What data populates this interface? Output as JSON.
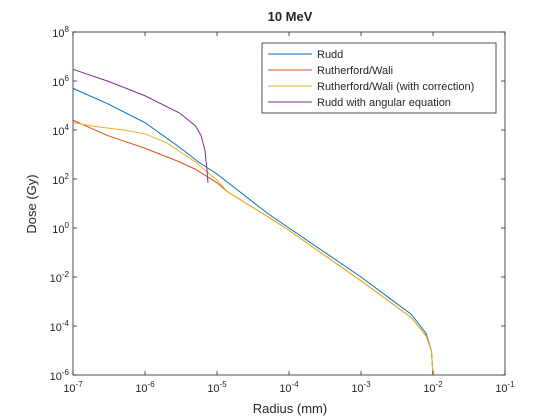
{
  "chart_data": {
    "type": "line",
    "title": "10 MeV",
    "xlabel": "Radius (mm)",
    "ylabel": "Dose (Gy)",
    "xscale": "log",
    "yscale": "log",
    "xlim": [
      1e-07,
      0.1
    ],
    "ylim": [
      1e-06,
      100000000.0
    ],
    "x_ticks": [
      {
        "base": "10",
        "exp": "-7"
      },
      {
        "base": "10",
        "exp": "-6"
      },
      {
        "base": "10",
        "exp": "-5"
      },
      {
        "base": "10",
        "exp": "-4"
      },
      {
        "base": "10",
        "exp": "-3"
      },
      {
        "base": "10",
        "exp": "-2"
      },
      {
        "base": "10",
        "exp": "-1"
      }
    ],
    "y_ticks": [
      {
        "base": "10",
        "exp": "-6"
      },
      {
        "base": "10",
        "exp": "-4"
      },
      {
        "base": "10",
        "exp": "-2"
      },
      {
        "base": "10",
        "exp": "0"
      },
      {
        "base": "10",
        "exp": "2"
      },
      {
        "base": "10",
        "exp": "4"
      },
      {
        "base": "10",
        "exp": "6"
      },
      {
        "base": "10",
        "exp": "8"
      }
    ],
    "grid": false,
    "legend_position": "top-right",
    "series": [
      {
        "name": "Rudd",
        "color": "#0072BD",
        "x": [
          1e-07,
          3e-07,
          1e-06,
          3e-06,
          5.5e-06,
          1e-05,
          5e-05,
          0.0001,
          0.001,
          0.005,
          0.008,
          0.0095,
          0.01
        ],
        "y": [
          500000,
          120000,
          20000,
          2000,
          500,
          160,
          4,
          1,
          0.01,
          0.0003,
          5e-05,
          1e-05,
          1e-06
        ]
      },
      {
        "name": "Rutherford/Wali",
        "color": "#D95319",
        "x": [
          1e-07,
          3e-07,
          1e-06,
          3e-06,
          5e-06,
          1e-05,
          1.4e-05,
          5e-05,
          0.0001,
          0.001,
          0.005,
          0.008,
          0.0095,
          0.01
        ],
        "y": [
          25000,
          6000,
          1800,
          500,
          250,
          70,
          30,
          3,
          0.8,
          0.007,
          0.00022,
          4e-05,
          1e-05,
          1e-06
        ]
      },
      {
        "name": "Rutherford/Wali (with correction)",
        "color": "#EDB120",
        "x": [
          1e-07,
          2e-07,
          5e-07,
          1e-06,
          2e-06,
          5e-06,
          1e-05,
          1.4e-05,
          5e-05,
          0.0001,
          0.001,
          0.005,
          0.008,
          0.0095,
          0.01
        ],
        "y": [
          20000,
          14000,
          10000,
          7000,
          3000,
          500,
          90,
          30,
          3,
          0.8,
          0.007,
          0.00022,
          4e-05,
          1e-05,
          1e-06
        ]
      },
      {
        "name": "Rudd with angular equation",
        "color": "#7E2F8E",
        "x": [
          1e-07,
          3e-07,
          1e-06,
          3e-06,
          5e-06,
          6e-06,
          6.8e-06,
          7.2e-06,
          7.5e-06
        ],
        "y": [
          3000000,
          1000000,
          250000,
          50000,
          15000,
          6000,
          1500,
          300,
          70
        ]
      }
    ]
  }
}
